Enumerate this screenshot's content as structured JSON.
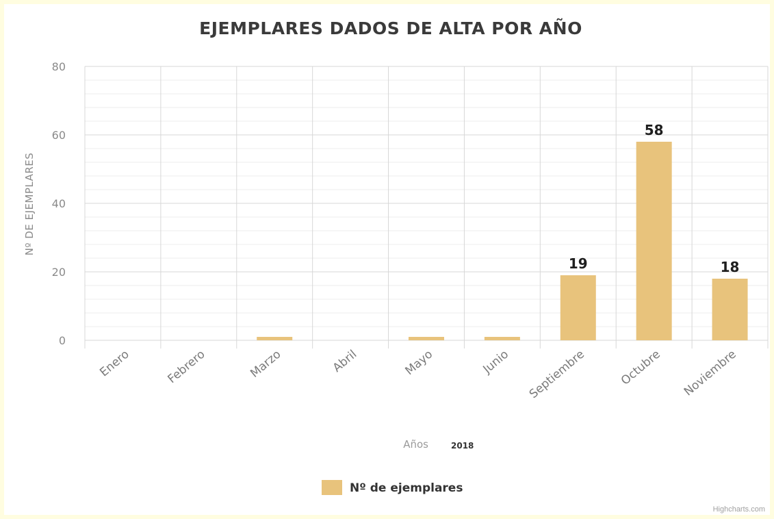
{
  "colors": {
    "bar": "#e8c37c",
    "grid_major": "#d7d7d7",
    "grid_minor": "#ececec",
    "background": "#ffffff",
    "frame": "#fffde0"
  },
  "chart_data": {
    "type": "bar",
    "title": "EJEMPLARES DADOS DE ALTA POR AÑO",
    "categories": [
      "Enero",
      "Febrero",
      "Marzo",
      "Abril",
      "Mayo",
      "Junio",
      "Septiembre",
      "Octubre",
      "Noviembre"
    ],
    "series": [
      {
        "name": "Nº de ejemplares",
        "values": [
          0,
          0,
          1,
          0,
          1,
          1,
          19,
          58,
          18
        ]
      }
    ],
    "data_labels": [
      "",
      "",
      "",
      "",
      "",
      "",
      "19",
      "58",
      "18"
    ],
    "xlabel": "Años",
    "xlabel_suffix": "2018",
    "ylabel": "Nº DE EJEMPLARES",
    "ylim": [
      0,
      80
    ],
    "yticks": [
      "0",
      "20",
      "40",
      "60",
      "80"
    ],
    "grid": true,
    "legend_position": "bottom-center",
    "credits": "Highcharts.com"
  }
}
